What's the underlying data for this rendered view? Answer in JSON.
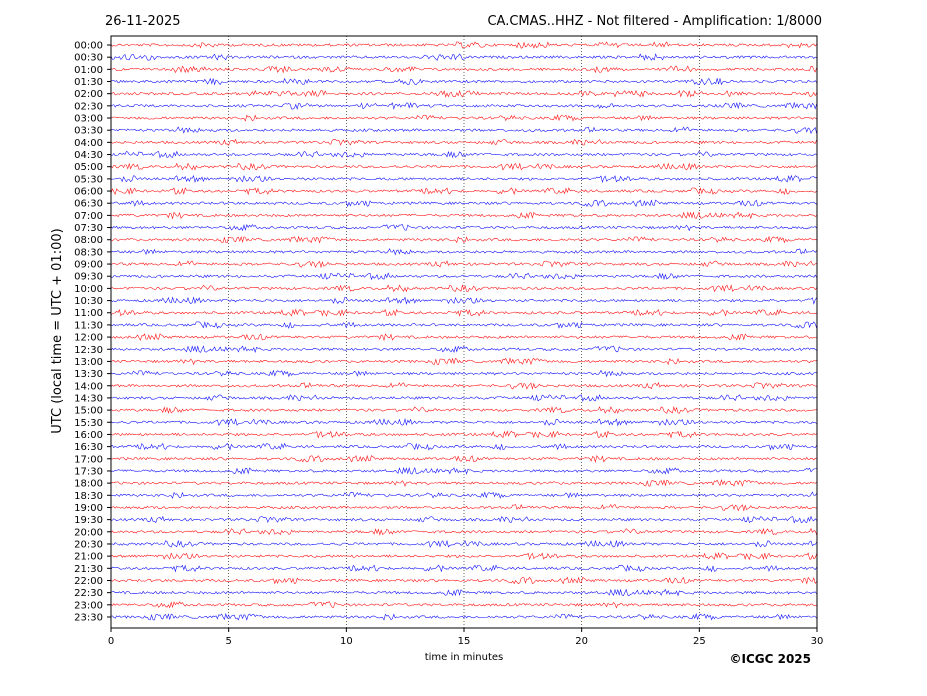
{
  "header": {
    "date": "26-11-2025",
    "title": "CA.CMAS..HHZ - Not filtered - Amplification: 1/8000"
  },
  "footer": {
    "copyright": "©ICGC 2025"
  },
  "colors": {
    "trace_even": "#ff0000",
    "trace_odd": "#0000ff",
    "grid": "#000000",
    "axes": "#000000"
  },
  "chart_data": {
    "type": "line",
    "subtype": "helicorder",
    "title": "CA.CMAS..HHZ - Not filtered - Amplification: 1/8000",
    "xlabel": "time in minutes",
    "ylabel": "UTC (local time = UTC + 01:00)",
    "xlim": [
      0,
      30
    ],
    "xticks": [
      0,
      5,
      10,
      15,
      20,
      25,
      30
    ],
    "xtick_labels": [
      "0",
      "5",
      "10",
      "15",
      "20",
      "25",
      "30"
    ],
    "vertical_gridlines_at": [
      5,
      10,
      15,
      20,
      25
    ],
    "grid": "dotted vertical",
    "series_colors_alternate": [
      "red",
      "blue"
    ],
    "rows": [
      "00:00",
      "00:30",
      "01:00",
      "01:30",
      "02:00",
      "02:30",
      "03:00",
      "03:30",
      "04:00",
      "04:30",
      "05:00",
      "05:30",
      "06:00",
      "06:30",
      "07:00",
      "07:30",
      "08:00",
      "08:30",
      "09:00",
      "09:30",
      "10:00",
      "10:30",
      "11:00",
      "11:30",
      "12:00",
      "12:30",
      "13:00",
      "13:30",
      "14:00",
      "14:30",
      "15:00",
      "15:30",
      "16:00",
      "16:30",
      "17:00",
      "17:30",
      "18:00",
      "18:30",
      "19:00",
      "19:30",
      "20:00",
      "20:30",
      "21:00",
      "21:30",
      "22:00",
      "22:30",
      "23:00",
      "23:30"
    ],
    "trace_character": "continuous low-amplitude background noise on every row, no distinct events"
  }
}
